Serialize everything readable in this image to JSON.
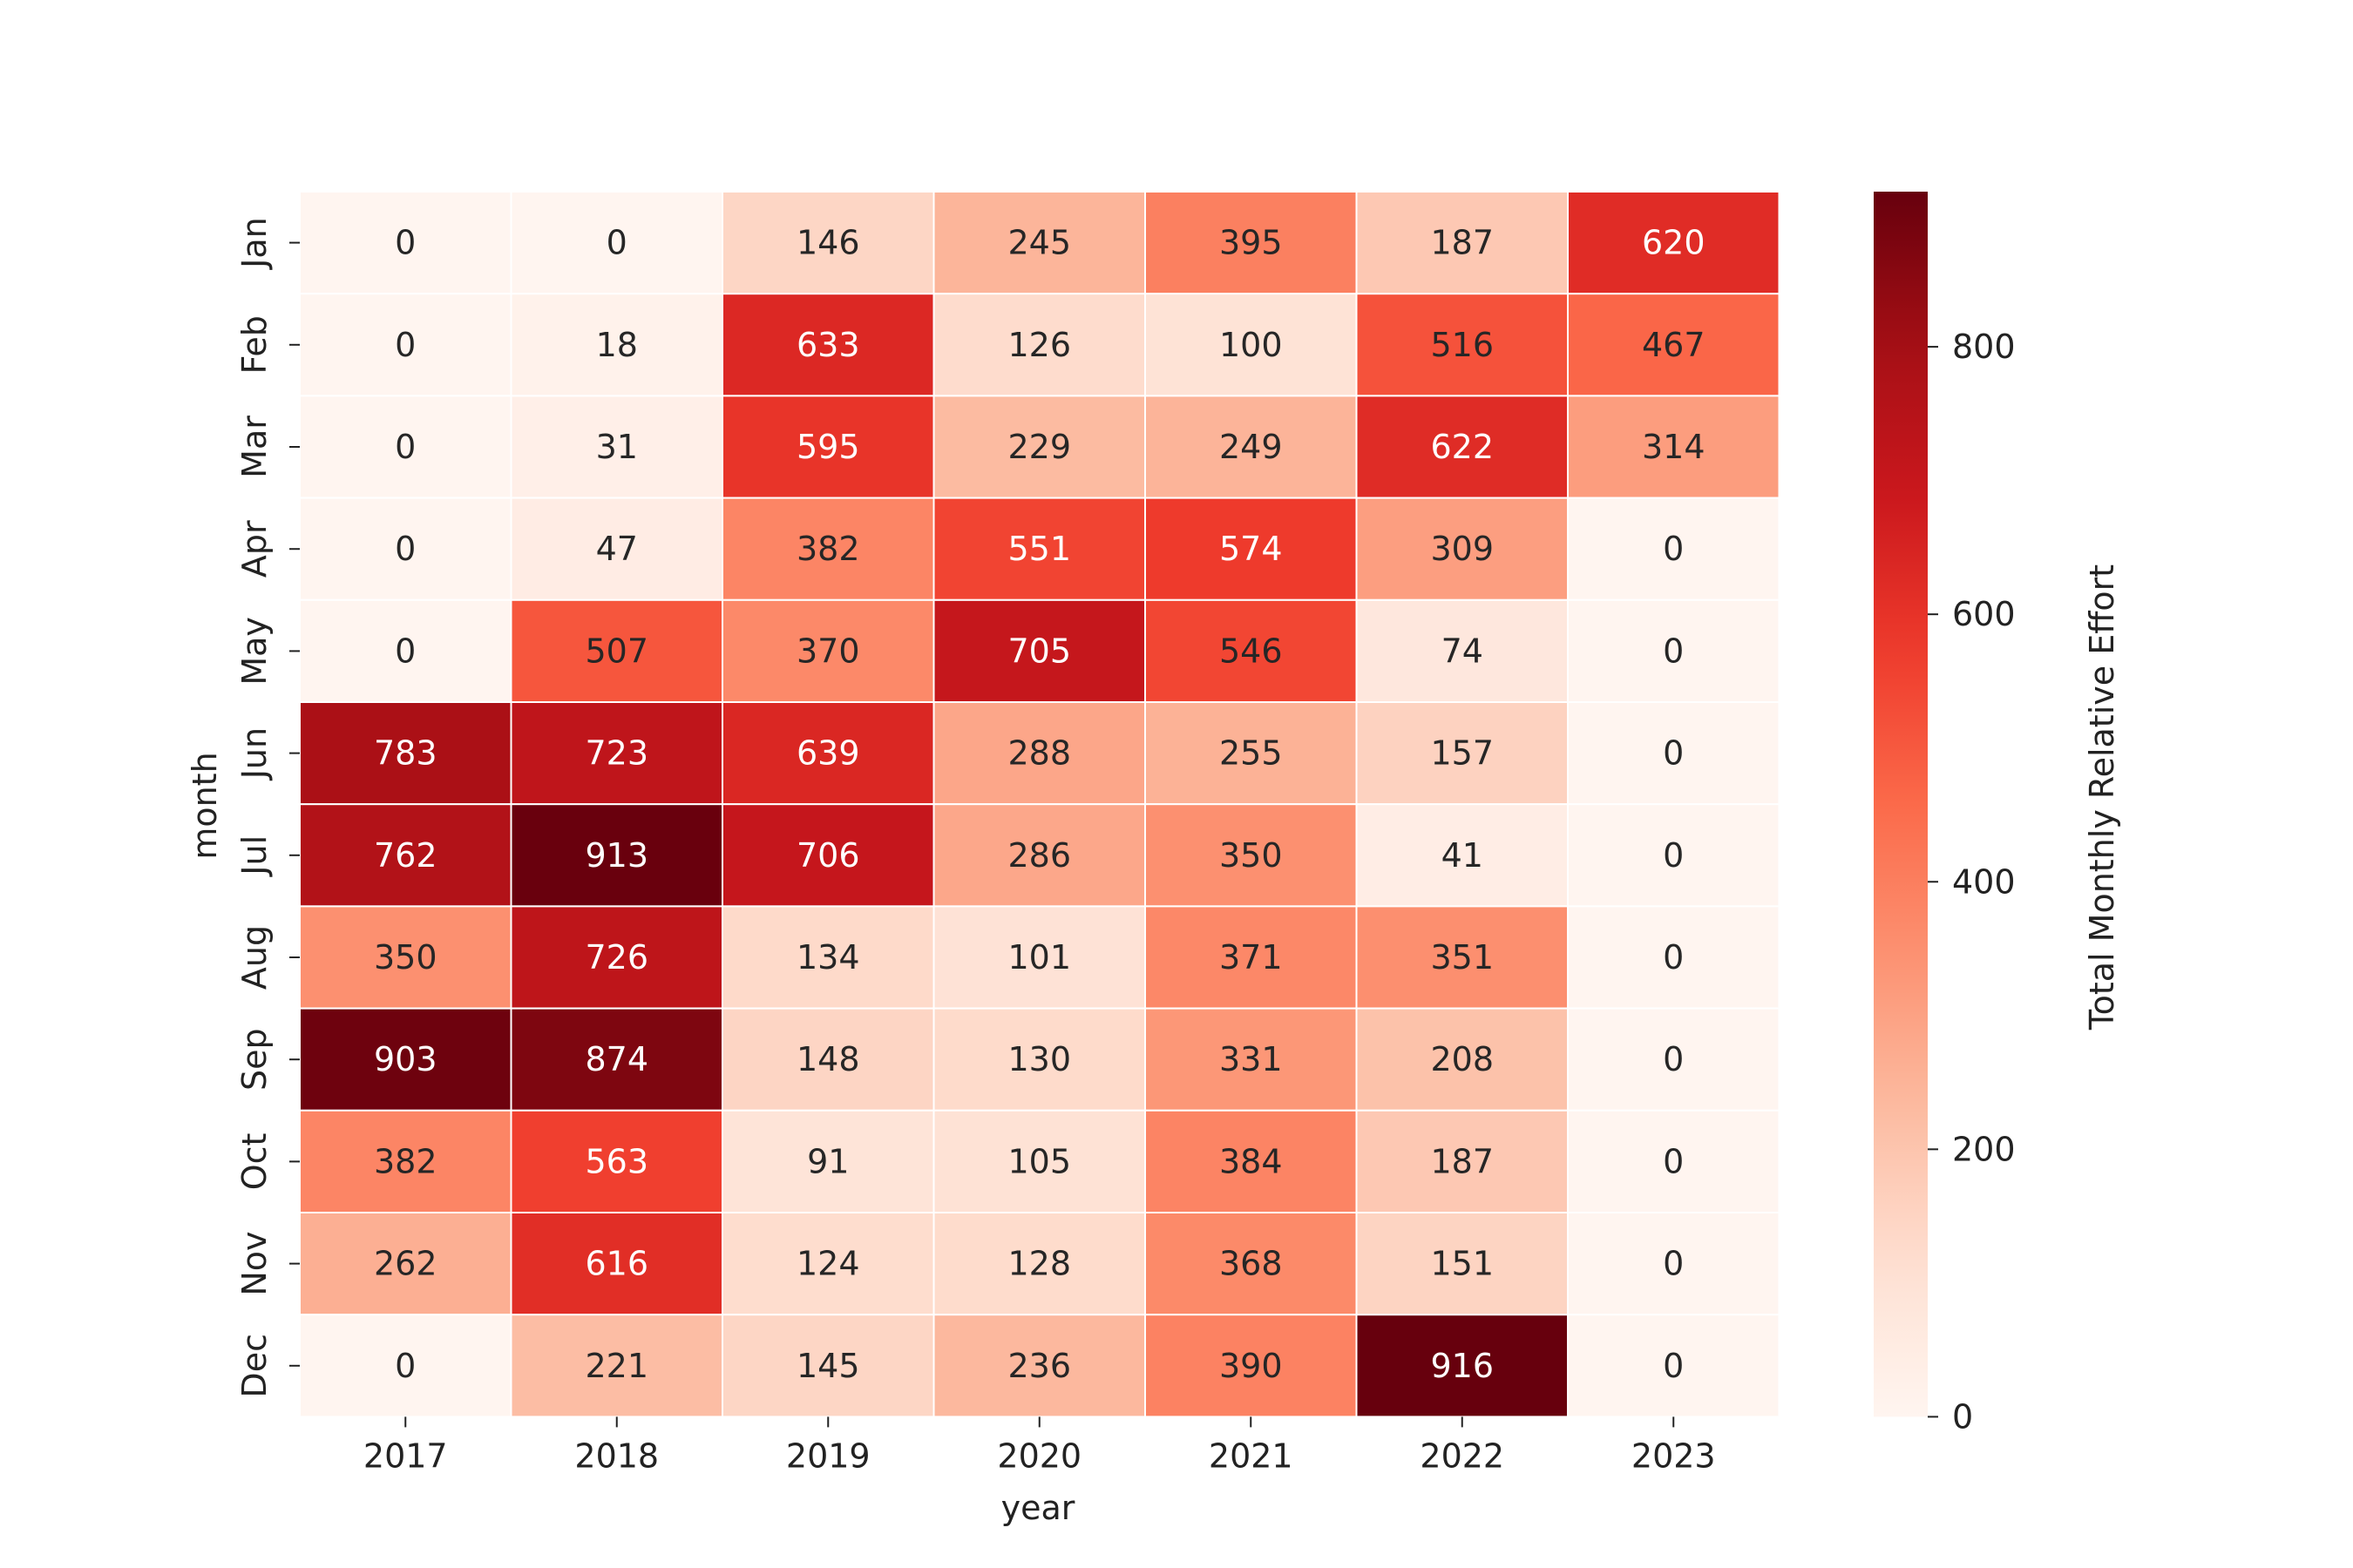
{
  "chart_data": {
    "type": "heatmap",
    "title": "",
    "xlabel": "year",
    "ylabel": "month",
    "x_categories": [
      "2017",
      "2018",
      "2019",
      "2020",
      "2021",
      "2022",
      "2023"
    ],
    "y_categories": [
      "Jan",
      "Feb",
      "Mar",
      "Apr",
      "May",
      "Jun",
      "Jul",
      "Aug",
      "Sep",
      "Oct",
      "Nov",
      "Dec"
    ],
    "values": [
      [
        0,
        0,
        146,
        245,
        395,
        187,
        620
      ],
      [
        0,
        18,
        633,
        126,
        100,
        516,
        467
      ],
      [
        0,
        31,
        595,
        229,
        249,
        622,
        314
      ],
      [
        0,
        47,
        382,
        551,
        574,
        309,
        0
      ],
      [
        0,
        507,
        370,
        705,
        546,
        74,
        0
      ],
      [
        783,
        723,
        639,
        288,
        255,
        157,
        0
      ],
      [
        762,
        913,
        706,
        286,
        350,
        41,
        0
      ],
      [
        350,
        726,
        134,
        101,
        371,
        351,
        0
      ],
      [
        903,
        874,
        148,
        130,
        331,
        208,
        0
      ],
      [
        382,
        563,
        91,
        105,
        384,
        187,
        0
      ],
      [
        262,
        616,
        124,
        128,
        368,
        151,
        0
      ],
      [
        0,
        221,
        145,
        236,
        390,
        916,
        0
      ]
    ],
    "colorbar": {
      "label": "Total Monthly Relative Effort",
      "min": 0,
      "max": 916,
      "ticks": [
        0,
        200,
        400,
        600,
        800
      ],
      "colormap": "Reds"
    },
    "grid": false,
    "legend": "colorbar-right"
  }
}
